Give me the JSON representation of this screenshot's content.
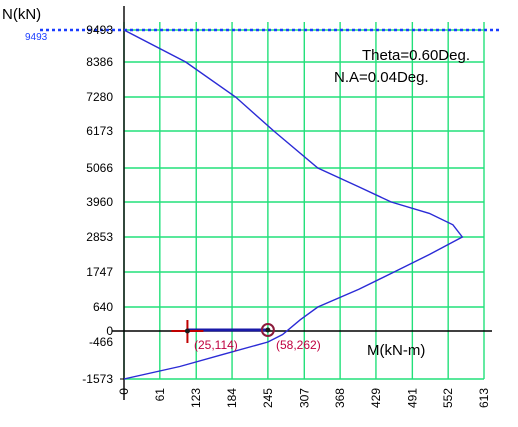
{
  "chart_data": {
    "type": "line",
    "ylabel": "N(kN)",
    "xlabel": "M(kN-m)",
    "y_ticks": [
      "9493",
      "8386",
      "7280",
      "6173",
      "5066",
      "3960",
      "2853",
      "1747",
      "640",
      "0",
      "-466",
      "-1573"
    ],
    "x_ticks": [
      "0",
      "61",
      "123",
      "184",
      "245",
      "307",
      "368",
      "429",
      "491",
      "552",
      "613"
    ],
    "xlim": [
      0,
      613
    ],
    "annotations": [
      "Theta=0.60Deg.",
      "N.A=0.04Deg."
    ],
    "capacity_line": {
      "label": "9493",
      "value": 9493,
      "color": "#1a3dff"
    },
    "series": [
      {
        "color": "#2b2bd6",
        "points": [
          [
            0,
            -1573
          ],
          [
            95,
            -1200
          ],
          [
            170,
            -830
          ],
          [
            245,
            -466
          ],
          [
            270,
            -150
          ],
          [
            300,
            300
          ],
          [
            330,
            640
          ],
          [
            400,
            1200
          ],
          [
            460,
            1747
          ],
          [
            520,
            2300
          ],
          [
            576,
            2853
          ],
          [
            560,
            3240
          ],
          [
            520,
            3600
          ],
          [
            455,
            3960
          ],
          [
            400,
            4450
          ],
          [
            330,
            5066
          ],
          [
            255,
            6173
          ],
          [
            190,
            7280
          ],
          [
            105,
            8386
          ],
          [
            0,
            9493
          ]
        ]
      }
    ],
    "points": [
      {
        "label": "(25,114)",
        "m": 108,
        "n": 0,
        "marker": "cross",
        "color": "#c00000"
      },
      {
        "label": "(58,262)",
        "m": 245,
        "n": 0,
        "marker": "circle",
        "color": "#8b1a3a"
      }
    ],
    "grid": true,
    "grid_color": "#22e07a"
  }
}
